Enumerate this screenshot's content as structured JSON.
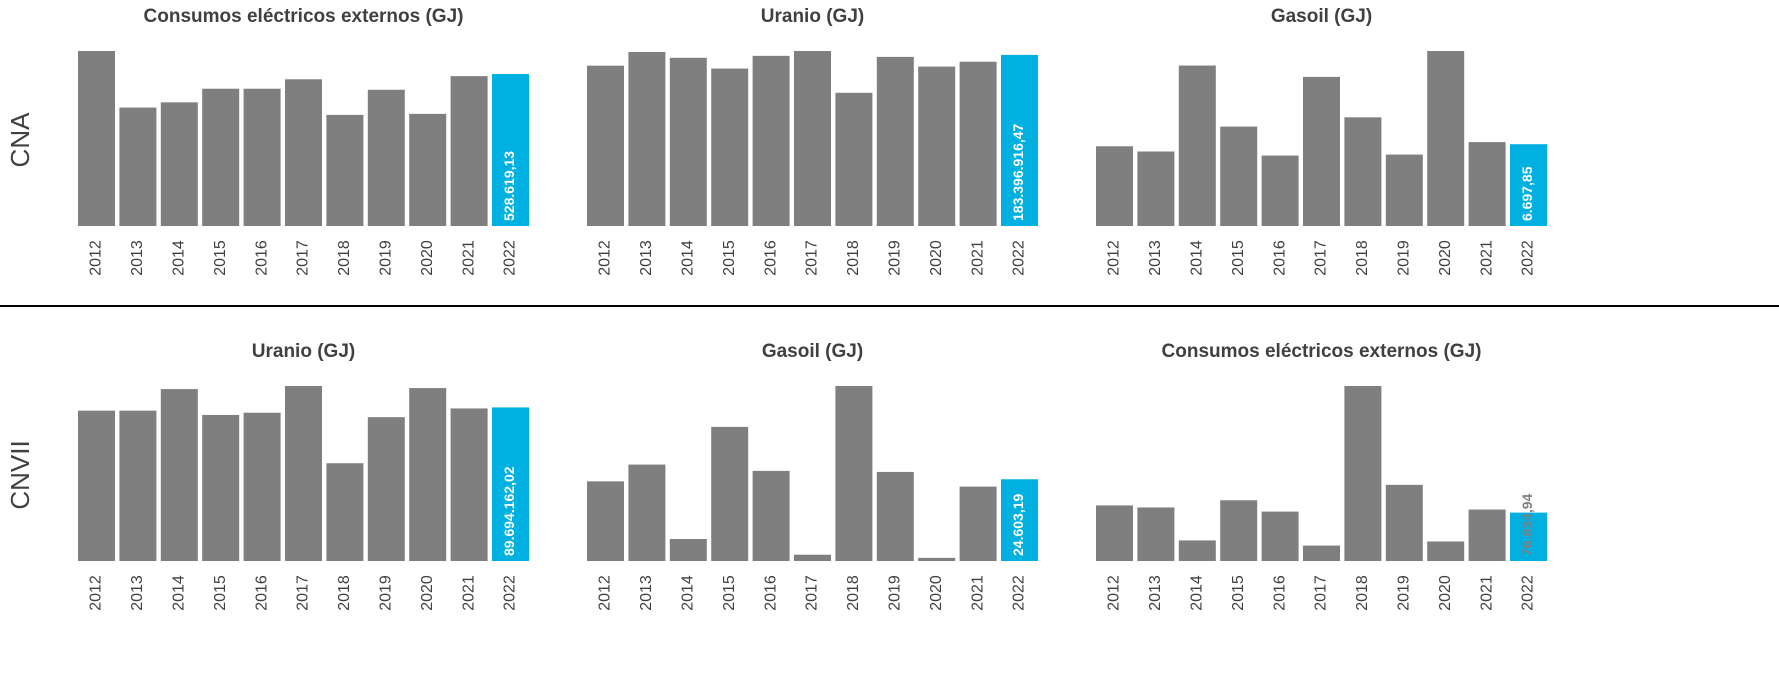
{
  "row_labels": [
    "CNA",
    "CNVII"
  ],
  "chart_data": [
    {
      "type": "bar",
      "title": "Consumos eléctricos externos (GJ)",
      "categories": [
        "2012",
        "2013",
        "2014",
        "2015",
        "2016",
        "2017",
        "2018",
        "2019",
        "2020",
        "2021",
        "2022"
      ],
      "values": [
        608800,
        412000,
        430200,
        477600,
        477600,
        510400,
        386500,
        474000,
        390100,
        521400,
        528619.13
      ],
      "value_labels": [
        null,
        null,
        null,
        null,
        null,
        null,
        null,
        null,
        null,
        null,
        "528.619,13"
      ],
      "colors": [
        "#7f7f7f",
        "#7f7f7f",
        "#7f7f7f",
        "#7f7f7f",
        "#7f7f7f",
        "#7f7f7f",
        "#7f7f7f",
        "#7f7f7f",
        "#7f7f7f",
        "#7f7f7f",
        "#00b0e0"
      ],
      "value_label_color": "#ffffff"
    },
    {
      "type": "bar",
      "title": "Uranio (GJ)",
      "categories": [
        "2012",
        "2013",
        "2014",
        "2015",
        "2016",
        "2017",
        "2018",
        "2019",
        "2020",
        "2021",
        "2022"
      ],
      "values": [
        171900000,
        186500000,
        180300000,
        168800000,
        182400000,
        187600000,
        142800000,
        181300000,
        170900000,
        176100000,
        183396916.47
      ],
      "value_labels": [
        null,
        null,
        null,
        null,
        null,
        null,
        null,
        null,
        null,
        null,
        "183.396.916,47"
      ],
      "colors": [
        "#7f7f7f",
        "#7f7f7f",
        "#7f7f7f",
        "#7f7f7f",
        "#7f7f7f",
        "#7f7f7f",
        "#7f7f7f",
        "#7f7f7f",
        "#7f7f7f",
        "#7f7f7f",
        "#00b0e0"
      ],
      "value_label_color": "#ffffff"
    },
    {
      "type": "bar",
      "title": "Gasoil (GJ)",
      "categories": [
        "2012",
        "2013",
        "2014",
        "2015",
        "2016",
        "2017",
        "2018",
        "2019",
        "2020",
        "2021",
        "2022"
      ],
      "values": [
        6530,
        6100,
        13140,
        8140,
        5770,
        12210,
        8900,
        5850,
        14330,
        6870,
        6697.85
      ],
      "value_labels": [
        null,
        null,
        null,
        null,
        null,
        null,
        null,
        null,
        null,
        null,
        "6.697,85"
      ],
      "colors": [
        "#7f7f7f",
        "#7f7f7f",
        "#7f7f7f",
        "#7f7f7f",
        "#7f7f7f",
        "#7f7f7f",
        "#7f7f7f",
        "#7f7f7f",
        "#7f7f7f",
        "#7f7f7f",
        "#00b0e0"
      ],
      "value_label_color": "#ffffff"
    },
    {
      "type": "bar",
      "title": "Uranio (GJ)",
      "categories": [
        "2012",
        "2013",
        "2014",
        "2015",
        "2016",
        "2017",
        "2018",
        "2019",
        "2020",
        "2021",
        "2022"
      ],
      "values": [
        87800000,
        87800000,
        100400000,
        85300000,
        86600000,
        102200000,
        57100000,
        84000000,
        101000000,
        89100000,
        89694162.02
      ],
      "value_labels": [
        null,
        null,
        null,
        null,
        null,
        null,
        null,
        null,
        null,
        null,
        "89.694.162,02"
      ],
      "colors": [
        "#7f7f7f",
        "#7f7f7f",
        "#7f7f7f",
        "#7f7f7f",
        "#7f7f7f",
        "#7f7f7f",
        "#7f7f7f",
        "#7f7f7f",
        "#7f7f7f",
        "#7f7f7f",
        "#00b0e0"
      ],
      "value_label_color": "#ffffff"
    },
    {
      "type": "bar",
      "title": "Gasoil  (GJ)",
      "categories": [
        "2012",
        "2013",
        "2014",
        "2015",
        "2016",
        "2017",
        "2018",
        "2019",
        "2020",
        "2021",
        "2022"
      ],
      "values": [
        23970,
        29020,
        6620,
        40370,
        27120,
        1890,
        52670,
        26810,
        950,
        22390,
        24603.19
      ],
      "value_labels": [
        null,
        null,
        null,
        null,
        null,
        null,
        null,
        null,
        null,
        null,
        "24.603,19"
      ],
      "colors": [
        "#7f7f7f",
        "#7f7f7f",
        "#7f7f7f",
        "#7f7f7f",
        "#7f7f7f",
        "#7f7f7f",
        "#7f7f7f",
        "#7f7f7f",
        "#7f7f7f",
        "#7f7f7f",
        "#00b0e0"
      ],
      "value_label_color": "#ffffff"
    },
    {
      "type": "bar",
      "title": "Consumos eléctricos externos (GJ)",
      "categories": [
        "2012",
        "2013",
        "2014",
        "2015",
        "2016",
        "2017",
        "2018",
        "2019",
        "2020",
        "2021",
        "2022"
      ],
      "values": [
        88280,
        85010,
        32700,
        96450,
        78470,
        24520,
        277900,
        120980,
        31060,
        81740,
        76834.94
      ],
      "value_labels": [
        null,
        null,
        null,
        null,
        null,
        null,
        null,
        null,
        null,
        null,
        "76.834,94"
      ],
      "colors": [
        "#7f7f7f",
        "#7f7f7f",
        "#7f7f7f",
        "#7f7f7f",
        "#7f7f7f",
        "#7f7f7f",
        "#7f7f7f",
        "#7f7f7f",
        "#7f7f7f",
        "#7f7f7f",
        "#00b0e0"
      ],
      "value_label_color": "#7f7f7f"
    }
  ]
}
